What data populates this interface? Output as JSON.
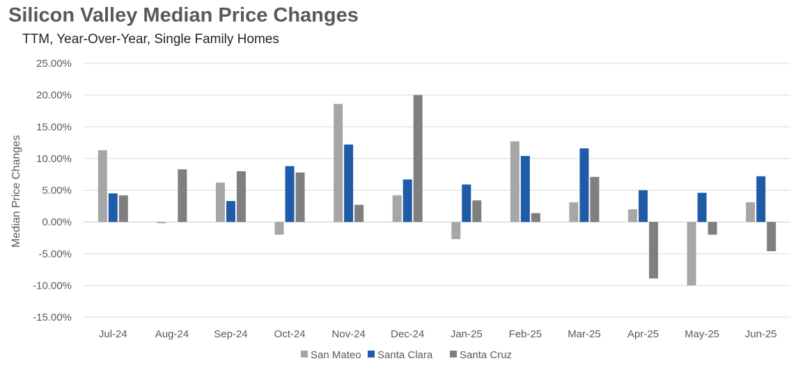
{
  "chart_data": {
    "type": "bar",
    "title": "Silicon Valley Median Price Changes",
    "subtitle": "TTM, Year-Over-Year, Single Family Homes",
    "ylabel": "Median Price Changes",
    "xlabel": "",
    "ylim": [
      -15,
      25
    ],
    "yticks": [
      "25.00%",
      "20.00%",
      "15.00%",
      "10.00%",
      "5.00%",
      "0.00%",
      "-5.00%",
      "-10.00%",
      "-15.00%"
    ],
    "ytick_values": [
      25,
      20,
      15,
      10,
      5,
      0,
      -5,
      -10,
      -15
    ],
    "grid": true,
    "legend_position": "bottom",
    "categories": [
      "Jul-24",
      "Aug-24",
      "Sep-24",
      "Oct-24",
      "Nov-24",
      "Dec-24",
      "Jan-25",
      "Feb-25",
      "Mar-25",
      "Apr-25",
      "May-25",
      "Jun-25"
    ],
    "series": [
      {
        "name": "San Mateo",
        "color": "#a6a6a6",
        "values": [
          11.3,
          -0.2,
          6.2,
          -2.0,
          18.6,
          4.2,
          -2.7,
          12.7,
          3.1,
          2.0,
          -10.0,
          3.1
        ]
      },
      {
        "name": "Santa Clara",
        "color": "#1f5ca8",
        "values": [
          4.5,
          0.0,
          3.3,
          8.8,
          12.2,
          6.7,
          5.9,
          10.4,
          11.6,
          5.0,
          4.6,
          7.2
        ]
      },
      {
        "name": "Santa Cruz",
        "color": "#7f7f7f",
        "values": [
          4.2,
          8.3,
          8.0,
          7.8,
          2.7,
          20.0,
          3.4,
          1.4,
          7.1,
          -8.9,
          -2.0,
          -4.6
        ]
      }
    ]
  }
}
